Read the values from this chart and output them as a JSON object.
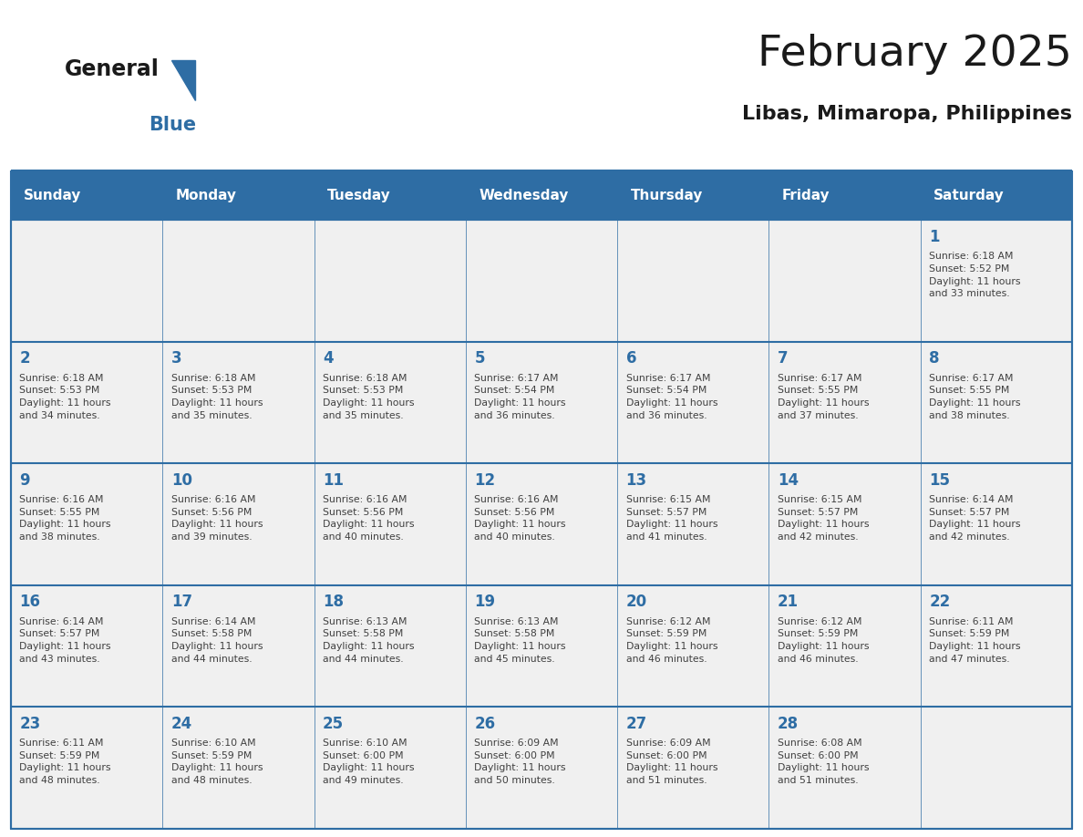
{
  "title": "February 2025",
  "subtitle": "Libas, Mimaropa, Philippines",
  "days_of_week": [
    "Sunday",
    "Monday",
    "Tuesday",
    "Wednesday",
    "Thursday",
    "Friday",
    "Saturday"
  ],
  "header_bg": "#2E6DA4",
  "header_text": "#FFFFFF",
  "cell_bg_light": "#F0F0F0",
  "border_color": "#2E6DA4",
  "text_color": "#404040",
  "day_number_color": "#2E6DA4",
  "title_color": "#1a1a1a",
  "subtitle_color": "#1a1a1a",
  "logo_text_color": "#1a1a1a",
  "logo_blue_color": "#2E6DA4",
  "calendar_data": [
    [
      {
        "day": "",
        "info": ""
      },
      {
        "day": "",
        "info": ""
      },
      {
        "day": "",
        "info": ""
      },
      {
        "day": "",
        "info": ""
      },
      {
        "day": "",
        "info": ""
      },
      {
        "day": "",
        "info": ""
      },
      {
        "day": "1",
        "info": "Sunrise: 6:18 AM\nSunset: 5:52 PM\nDaylight: 11 hours\nand 33 minutes."
      }
    ],
    [
      {
        "day": "2",
        "info": "Sunrise: 6:18 AM\nSunset: 5:53 PM\nDaylight: 11 hours\nand 34 minutes."
      },
      {
        "day": "3",
        "info": "Sunrise: 6:18 AM\nSunset: 5:53 PM\nDaylight: 11 hours\nand 35 minutes."
      },
      {
        "day": "4",
        "info": "Sunrise: 6:18 AM\nSunset: 5:53 PM\nDaylight: 11 hours\nand 35 minutes."
      },
      {
        "day": "5",
        "info": "Sunrise: 6:17 AM\nSunset: 5:54 PM\nDaylight: 11 hours\nand 36 minutes."
      },
      {
        "day": "6",
        "info": "Sunrise: 6:17 AM\nSunset: 5:54 PM\nDaylight: 11 hours\nand 36 minutes."
      },
      {
        "day": "7",
        "info": "Sunrise: 6:17 AM\nSunset: 5:55 PM\nDaylight: 11 hours\nand 37 minutes."
      },
      {
        "day": "8",
        "info": "Sunrise: 6:17 AM\nSunset: 5:55 PM\nDaylight: 11 hours\nand 38 minutes."
      }
    ],
    [
      {
        "day": "9",
        "info": "Sunrise: 6:16 AM\nSunset: 5:55 PM\nDaylight: 11 hours\nand 38 minutes."
      },
      {
        "day": "10",
        "info": "Sunrise: 6:16 AM\nSunset: 5:56 PM\nDaylight: 11 hours\nand 39 minutes."
      },
      {
        "day": "11",
        "info": "Sunrise: 6:16 AM\nSunset: 5:56 PM\nDaylight: 11 hours\nand 40 minutes."
      },
      {
        "day": "12",
        "info": "Sunrise: 6:16 AM\nSunset: 5:56 PM\nDaylight: 11 hours\nand 40 minutes."
      },
      {
        "day": "13",
        "info": "Sunrise: 6:15 AM\nSunset: 5:57 PM\nDaylight: 11 hours\nand 41 minutes."
      },
      {
        "day": "14",
        "info": "Sunrise: 6:15 AM\nSunset: 5:57 PM\nDaylight: 11 hours\nand 42 minutes."
      },
      {
        "day": "15",
        "info": "Sunrise: 6:14 AM\nSunset: 5:57 PM\nDaylight: 11 hours\nand 42 minutes."
      }
    ],
    [
      {
        "day": "16",
        "info": "Sunrise: 6:14 AM\nSunset: 5:57 PM\nDaylight: 11 hours\nand 43 minutes."
      },
      {
        "day": "17",
        "info": "Sunrise: 6:14 AM\nSunset: 5:58 PM\nDaylight: 11 hours\nand 44 minutes."
      },
      {
        "day": "18",
        "info": "Sunrise: 6:13 AM\nSunset: 5:58 PM\nDaylight: 11 hours\nand 44 minutes."
      },
      {
        "day": "19",
        "info": "Sunrise: 6:13 AM\nSunset: 5:58 PM\nDaylight: 11 hours\nand 45 minutes."
      },
      {
        "day": "20",
        "info": "Sunrise: 6:12 AM\nSunset: 5:59 PM\nDaylight: 11 hours\nand 46 minutes."
      },
      {
        "day": "21",
        "info": "Sunrise: 6:12 AM\nSunset: 5:59 PM\nDaylight: 11 hours\nand 46 minutes."
      },
      {
        "day": "22",
        "info": "Sunrise: 6:11 AM\nSunset: 5:59 PM\nDaylight: 11 hours\nand 47 minutes."
      }
    ],
    [
      {
        "day": "23",
        "info": "Sunrise: 6:11 AM\nSunset: 5:59 PM\nDaylight: 11 hours\nand 48 minutes."
      },
      {
        "day": "24",
        "info": "Sunrise: 6:10 AM\nSunset: 5:59 PM\nDaylight: 11 hours\nand 48 minutes."
      },
      {
        "day": "25",
        "info": "Sunrise: 6:10 AM\nSunset: 6:00 PM\nDaylight: 11 hours\nand 49 minutes."
      },
      {
        "day": "26",
        "info": "Sunrise: 6:09 AM\nSunset: 6:00 PM\nDaylight: 11 hours\nand 50 minutes."
      },
      {
        "day": "27",
        "info": "Sunrise: 6:09 AM\nSunset: 6:00 PM\nDaylight: 11 hours\nand 51 minutes."
      },
      {
        "day": "28",
        "info": "Sunrise: 6:08 AM\nSunset: 6:00 PM\nDaylight: 11 hours\nand 51 minutes."
      },
      {
        "day": "",
        "info": ""
      }
    ]
  ]
}
